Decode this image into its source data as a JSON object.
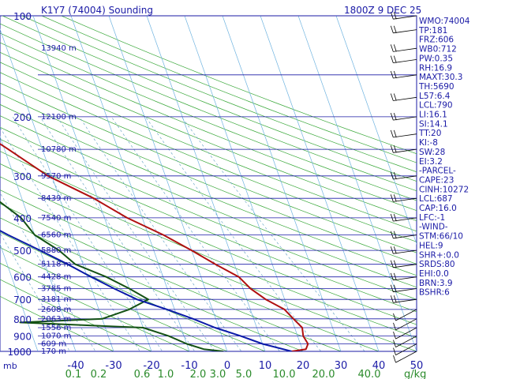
{
  "header": {
    "title": "K1Y7 (74004) Sounding",
    "time": "1800Z  9 DEC 25"
  },
  "chart_data": {
    "type": "line",
    "title": "K1Y7 (74004) Sounding",
    "xlabel": "",
    "ylabel": "mb",
    "xlim": [
      -50,
      50
    ],
    "ylim": [
      1000,
      100
    ],
    "y_scale": "log",
    "x_ticks": [
      -40,
      -30,
      -20,
      -10,
      0,
      10,
      20,
      30,
      40,
      50
    ],
    "y_ticks": [
      100,
      200,
      300,
      400,
      500,
      600,
      700,
      800,
      900,
      1000
    ],
    "mixing_ratio_labels": [
      "0.1",
      "0.2",
      "0.6",
      "1.0",
      "2.0",
      "3.0",
      "5.0",
      "10.0",
      "20.0",
      "40.0"
    ],
    "mixing_ratio_unit": "g/kg",
    "height_labels": [
      {
        "p": 125,
        "label": "13940 m"
      },
      {
        "p": 200,
        "label": "12100 m"
      },
      {
        "p": 250,
        "label": "10780 m"
      },
      {
        "p": 300,
        "label": "9570 m"
      },
      {
        "p": 350,
        "label": "8439 m"
      },
      {
        "p": 400,
        "label": "7540 m"
      },
      {
        "p": 450,
        "label": "6560 m"
      },
      {
        "p": 500,
        "label": "5880 m"
      },
      {
        "p": 550,
        "label": "5118 m"
      },
      {
        "p": 600,
        "label": "4428 m"
      },
      {
        "p": 650,
        "label": "3785 m"
      },
      {
        "p": 700,
        "label": "3181 m"
      },
      {
        "p": 750,
        "label": "2608 m"
      },
      {
        "p": 800,
        "label": "2063 m"
      },
      {
        "p": 850,
        "label": "1556 m"
      },
      {
        "p": 900,
        "label": "1070 m"
      },
      {
        "p": 950,
        "label": "609 m"
      },
      {
        "p": 1000,
        "label": "170 m"
      }
    ],
    "series": [
      {
        "role": "temperature",
        "points": [
          [
            1000,
            17
          ],
          [
            985,
            21
          ],
          [
            950,
            22
          ],
          [
            900,
            21.5
          ],
          [
            850,
            22
          ],
          [
            800,
            20.5
          ],
          [
            750,
            19
          ],
          [
            700,
            15
          ],
          [
            650,
            12
          ],
          [
            600,
            10
          ],
          [
            550,
            5
          ],
          [
            500,
            0
          ],
          [
            450,
            -6
          ],
          [
            400,
            -14
          ],
          [
            350,
            -21
          ],
          [
            300,
            -31
          ],
          [
            250,
            -39
          ],
          [
            200,
            -49
          ],
          [
            170,
            -52
          ],
          [
            155,
            -41
          ],
          [
            140,
            -38
          ],
          [
            125,
            -35
          ],
          [
            110,
            -34
          ],
          [
            100,
            -33
          ]
        ],
        "color": "#b01010"
      },
      {
        "role": "dewpoint",
        "points": [
          [
            1000,
            -1
          ],
          [
            985,
            -6
          ],
          [
            950,
            -10
          ],
          [
            900,
            -14
          ],
          [
            850,
            -20
          ],
          [
            820,
            -52
          ],
          [
            800,
            -30
          ],
          [
            750,
            -22
          ],
          [
            700,
            -16
          ],
          [
            650,
            -20
          ],
          [
            600,
            -25
          ],
          [
            550,
            -32
          ],
          [
            500,
            -35
          ],
          [
            450,
            -40
          ],
          [
            400,
            -42
          ],
          [
            350,
            -47
          ],
          [
            300,
            -55
          ],
          [
            250,
            -60
          ],
          [
            200,
            -67
          ],
          [
            170,
            -72
          ],
          [
            155,
            -72
          ],
          [
            140,
            -73
          ],
          [
            125,
            -73
          ],
          [
            100,
            -74
          ]
        ],
        "color": "#145214"
      },
      {
        "role": "parcel",
        "points": [
          [
            1000,
            17
          ],
          [
            950,
            10
          ],
          [
            900,
            5
          ],
          [
            850,
            -1
          ],
          [
            800,
            -6
          ],
          [
            750,
            -12
          ],
          [
            700,
            -19
          ],
          [
            650,
            -24
          ],
          [
            600,
            -29
          ],
          [
            550,
            -34
          ],
          [
            500,
            -40
          ],
          [
            450,
            -47
          ],
          [
            400,
            -54
          ],
          [
            350,
            -61
          ],
          [
            300,
            -68
          ],
          [
            250,
            -75
          ],
          [
            200,
            -83
          ],
          [
            150,
            -90
          ],
          [
            100,
            -100
          ]
        ],
        "color": "#0a1aa8"
      }
    ],
    "wind_barbs_pressures": [
      1000,
      950,
      900,
      850,
      800,
      750,
      700,
      650,
      600,
      550,
      500,
      450,
      400,
      350,
      300,
      250,
      225,
      200,
      175,
      150,
      135,
      125,
      110,
      100
    ]
  },
  "indices": [
    "WMO:74004",
    "TP:181",
    "FRZ:606",
    "WB0:712",
    "PW:0.35",
    "RH:16.9",
    "MAXT:30.3",
    "TH:5690",
    "L57:6.4",
    "LCL:790",
    "LI:16.1",
    "SI:14.1",
    "TT:20",
    "KI:-8",
    "SW:28",
    "EI:3.2",
    "-PARCEL-",
    "CAPE:23",
    "CINH:10272",
    "LCL:687",
    "CAP:16.0",
    "LFC:-1",
    "-WIND-",
    "STM:66/10",
    "HEL:9",
    "SHR+:0.0",
    "SRDS:80",
    "EHI:0.0",
    "BRN:3.9",
    "BSHR:6"
  ]
}
